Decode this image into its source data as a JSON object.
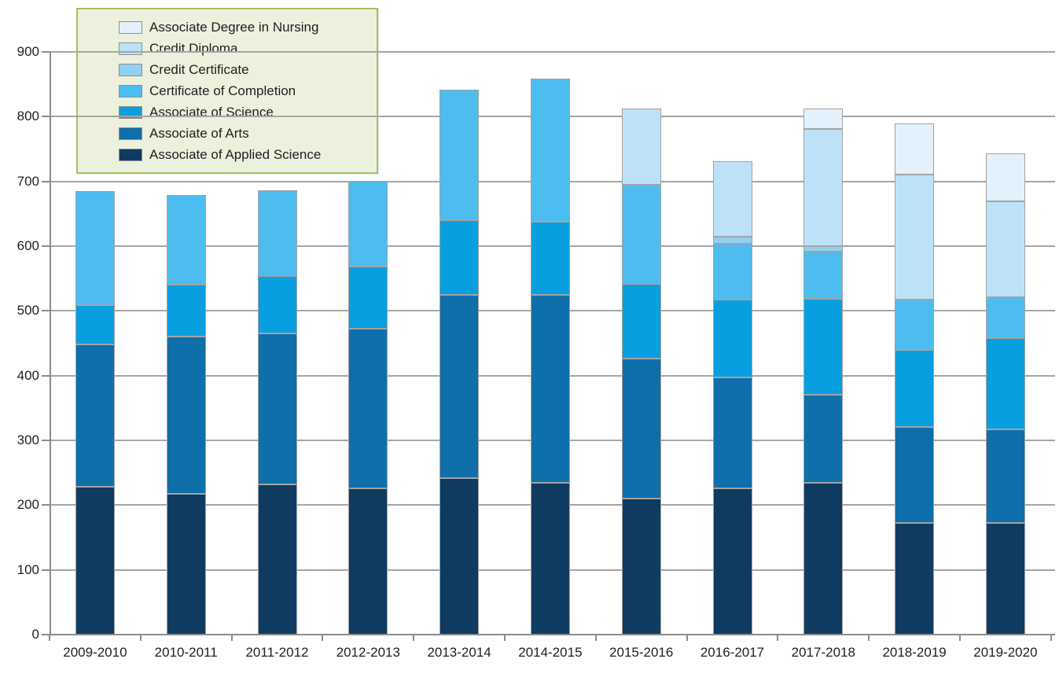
{
  "chart_data": {
    "type": "bar",
    "stacked": true,
    "title": "",
    "xlabel": "",
    "ylabel": "",
    "categories": [
      "2009-2010",
      "2010-2011",
      "2011-2012",
      "2012-2013",
      "2013-2014",
      "2014-2015",
      "2015-2016",
      "2016-2017",
      "2017-2018",
      "2018-2019",
      "2019-2020"
    ],
    "series": [
      {
        "name": "Associate of Applied Science",
        "color": "#0f3b60",
        "values": [
          228,
          218,
          232,
          226,
          242,
          234,
          210,
          226,
          235,
          172,
          172
        ]
      },
      {
        "name": "Associate of Arts",
        "color": "#0e6fab",
        "values": [
          220,
          242,
          233,
          246,
          283,
          291,
          216,
          171,
          135,
          149,
          145
        ]
      },
      {
        "name": "Associate of Science",
        "color": "#089fe0",
        "values": [
          61,
          81,
          89,
          96,
          115,
          113,
          116,
          120,
          149,
          119,
          141
        ]
      },
      {
        "name": "Certificate of Completion",
        "color": "#4dbdef",
        "values": [
          176,
          138,
          132,
          133,
          202,
          221,
          153,
          87,
          73,
          78,
          63
        ]
      },
      {
        "name": "Credit Certificate",
        "color": "#8fd1f4",
        "values": [
          0,
          0,
          0,
          0,
          0,
          0,
          0,
          11,
          8,
          0,
          0
        ]
      },
      {
        "name": "Credit Diploma",
        "color": "#bde2f7",
        "values": [
          0,
          0,
          0,
          0,
          0,
          0,
          117,
          116,
          181,
          192,
          148
        ]
      },
      {
        "name": "Associate Degree in Nursing",
        "color": "#e3f1fc",
        "values": [
          0,
          0,
          0,
          0,
          0,
          0,
          0,
          0,
          32,
          80,
          74
        ]
      }
    ],
    "totals": [
      685,
      679,
      686,
      701,
      842,
      859,
      812,
      731,
      813,
      790,
      743
    ],
    "legend_order_top_to_bottom": [
      6,
      5,
      4,
      3,
      2,
      1,
      0
    ],
    "legend_position": "top-left",
    "yticks": [
      0,
      100,
      200,
      300,
      400,
      500,
      600,
      700,
      800,
      900
    ],
    "ylim": [
      0,
      900
    ],
    "grid": true,
    "colors": {
      "gridline": "#a6a6a6",
      "axis": "#8c8c8c",
      "segment_border": "#a3a3a3",
      "legend_bg": "#ebf1dd",
      "legend_border": "#a7c05f",
      "text": "#1f1f1f",
      "background": "#ffffff"
    }
  }
}
